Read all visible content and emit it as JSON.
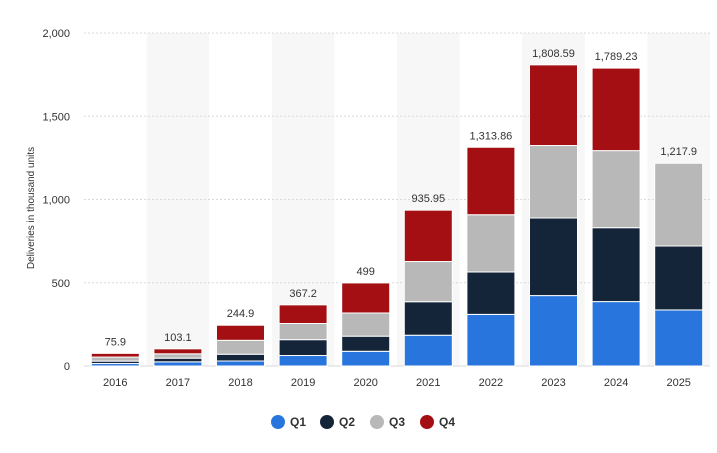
{
  "chart_data": {
    "type": "bar",
    "stacked": true,
    "categories": [
      "2016",
      "2017",
      "2018",
      "2019",
      "2020",
      "2021",
      "2022",
      "2023",
      "2024",
      "2025"
    ],
    "series": [
      {
        "name": "Q1",
        "color": "#2876dd",
        "values": [
          14.8,
          25.0,
          29.98,
          63.0,
          88.4,
          184.8,
          310.0,
          422.9,
          386.8,
          336.7
        ]
      },
      {
        "name": "Q2",
        "color": "#14253a",
        "values": [
          14.4,
          22.0,
          40.74,
          95.2,
          90.7,
          201.3,
          254.7,
          466.1,
          443.9,
          384.1
        ]
      },
      {
        "name": "Q3",
        "color": "#b8b8b8",
        "values": [
          24.5,
          26.1,
          83.5,
          97.0,
          139.3,
          241.3,
          343.8,
          435.1,
          462.9,
          497.1
        ]
      },
      {
        "name": "Q4",
        "color": "#a30f12",
        "values": [
          22.2,
          30.0,
          90.7,
          112.0,
          180.6,
          308.6,
          405.3,
          484.5,
          495.6,
          null
        ]
      }
    ],
    "totals": [
      "75.9",
      "103.1",
      "244.9",
      "367.2",
      "499",
      "935.95",
      "1,313.86",
      "1,808.59",
      "1,789.23",
      "1,217.9"
    ],
    "ylim": [
      0,
      2000
    ],
    "yticks": [
      "0",
      "500",
      "1,000",
      "1,500",
      "2,000"
    ],
    "ytick_values": [
      0,
      500,
      1000,
      1500,
      2000
    ],
    "ylabel": "Deliveries in thousand units",
    "xlabel": "",
    "grid": true,
    "legend": "bottom-center"
  }
}
